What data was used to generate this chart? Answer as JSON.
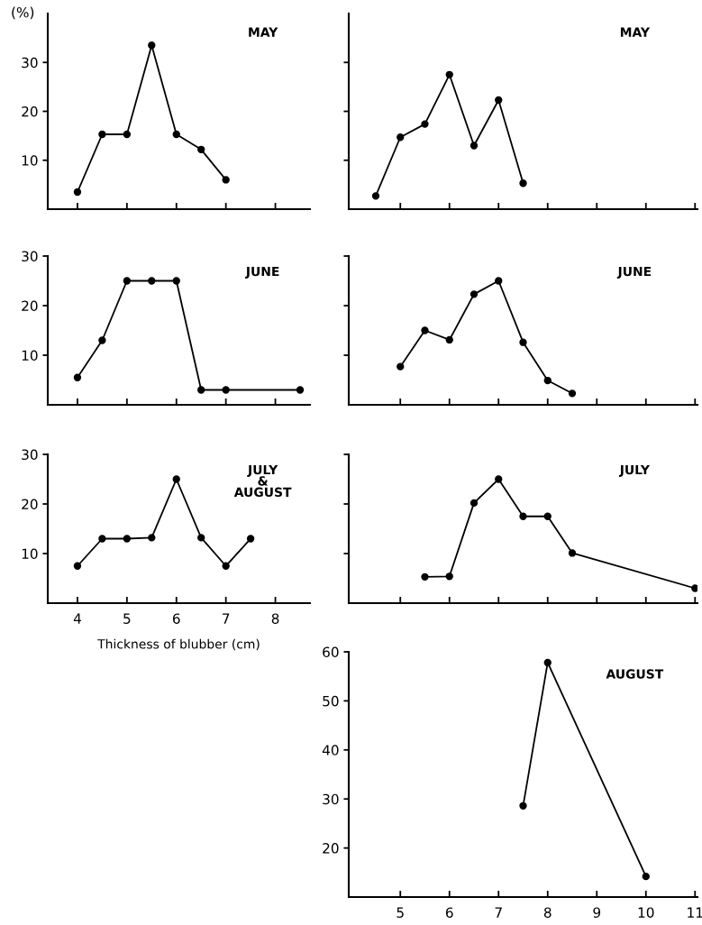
{
  "chart_data": [
    {
      "type": "line",
      "title": "MAY",
      "ylabel": "(%)",
      "x": [
        4,
        4.5,
        5,
        5.5,
        6,
        6.5,
        7
      ],
      "values": [
        3.5,
        15.3,
        15.3,
        33.5,
        15.3,
        12.2,
        6
      ],
      "color": "#000000",
      "marker": "circle",
      "xlim": [
        3.4,
        8.7
      ],
      "xticks": [
        4,
        5,
        6,
        7,
        8
      ],
      "ylim": [
        0,
        40
      ],
      "yticks": [
        10,
        20,
        30
      ],
      "tick_labels": "y"
    },
    {
      "type": "line",
      "title": "MAY",
      "x": [
        4.5,
        5,
        5.5,
        6,
        6.5,
        7,
        7.5
      ],
      "values": [
        2.7,
        14.7,
        17.4,
        27.5,
        13,
        22.3,
        5.3
      ],
      "color": "#000000",
      "marker": "circle",
      "xlim": [
        3.95,
        11.05
      ],
      "xticks": [
        5,
        6,
        7,
        8,
        9,
        10,
        11
      ],
      "ylim": [
        0,
        40
      ],
      "yticks": [
        10,
        20,
        30
      ],
      "tick_labels": false
    },
    {
      "type": "line",
      "title": "JUNE",
      "x": [
        4,
        4.5,
        5,
        5.5,
        6,
        6.5,
        7,
        8.5
      ],
      "values": [
        5.5,
        13,
        25,
        25,
        25,
        3,
        3,
        3
      ],
      "color": "#000000",
      "marker": "circle",
      "xlim": [
        3.4,
        8.7
      ],
      "xticks": [
        4,
        5,
        6,
        7,
        8
      ],
      "ylim": [
        0,
        30
      ],
      "yticks": [
        10,
        20,
        30
      ],
      "tick_labels": "y"
    },
    {
      "type": "line",
      "title": "JUNE",
      "x": [
        5,
        5.5,
        6,
        6.5,
        7,
        7.5,
        8,
        8.5
      ],
      "values": [
        7.7,
        15,
        13.1,
        22.3,
        25,
        12.6,
        4.9,
        2.3
      ],
      "color": "#000000",
      "marker": "circle",
      "xlim": [
        3.95,
        11.05
      ],
      "xticks": [
        5,
        6,
        7,
        8,
        9,
        10,
        11
      ],
      "ylim": [
        0,
        30
      ],
      "yticks": [
        10,
        20,
        30
      ],
      "tick_labels": false
    },
    {
      "type": "line",
      "title": "JULY\n&\nAUGUST",
      "xlabel": "Thickness of blubber (cm)",
      "x": [
        4,
        4.5,
        5,
        5.5,
        6,
        6.5,
        7,
        7.5
      ],
      "values": [
        7.5,
        13,
        13,
        13.2,
        25,
        13.2,
        7.5,
        13
      ],
      "color": "#000000",
      "marker": "circle",
      "xlim": [
        3.4,
        8.7
      ],
      "xticks": [
        4,
        5,
        6,
        7,
        8
      ],
      "ylim": [
        0,
        30
      ],
      "yticks": [
        10,
        20,
        30
      ]
    },
    {
      "type": "line",
      "title": "JULY",
      "x": [
        5.5,
        6,
        6.5,
        7,
        7.5,
        8,
        8.5,
        11
      ],
      "values": [
        5.3,
        5.4,
        20.2,
        25,
        17.5,
        17.5,
        10.1,
        3
      ],
      "color": "#000000",
      "marker": "circle",
      "xlim": [
        3.95,
        11.05
      ],
      "xticks": [
        5,
        6,
        7,
        8,
        9,
        10,
        11
      ],
      "ylim": [
        0,
        30
      ],
      "yticks": [
        10,
        20,
        30
      ],
      "tick_labels": false
    },
    {
      "type": "line",
      "title": "AUGUST",
      "x": [
        7.5,
        8,
        10
      ],
      "values": [
        28.6,
        57.8,
        14.2
      ],
      "color": "#000000",
      "marker": "circle",
      "xlim": [
        3.95,
        11.05
      ],
      "xticks": [
        5,
        6,
        7,
        8,
        9,
        10,
        11
      ],
      "ylim": [
        10,
        60
      ],
      "yticks": [
        20,
        30,
        40,
        50,
        60
      ]
    }
  ]
}
